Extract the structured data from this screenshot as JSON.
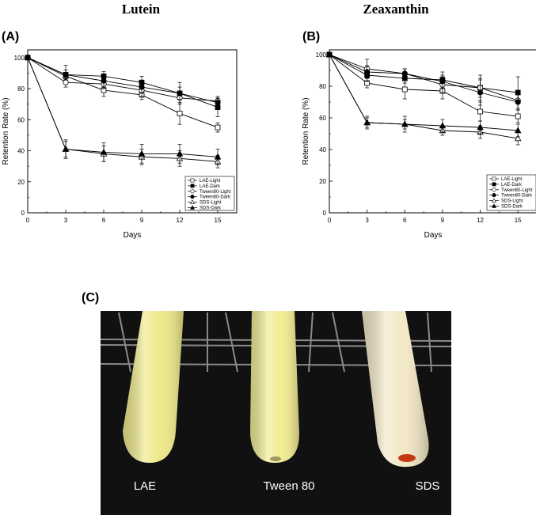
{
  "titles": {
    "left": "Lutein",
    "right": "Zeaxanthin"
  },
  "panel_labels": {
    "a": "(A)",
    "b": "(B)",
    "c": "(C)"
  },
  "photo": {
    "labels": [
      "LAE",
      "Tween 80",
      "SDS"
    ],
    "colors": {
      "background": "#111111",
      "tube_lae": "#eee98a",
      "tube_tween": "#f2ec93",
      "tube_sds": "#f3e8c6",
      "sediment": "#c43a12"
    }
  },
  "chart_data": [
    {
      "type": "line",
      "title": "Lutein",
      "panel": "(A)",
      "xlabel": "Days",
      "ylabel": "Retention Rate (%)",
      "xlim": [
        0,
        16.5
      ],
      "ylim": [
        0,
        105
      ],
      "xticks": [
        0,
        3,
        6,
        9,
        12,
        15
      ],
      "yticks": [
        0,
        20,
        40,
        60,
        80,
        100
      ],
      "legend_position": "bottom-right",
      "x": [
        0,
        3,
        6,
        9,
        12,
        15
      ],
      "series": [
        {
          "name": "LAE-Light",
          "marker": "square-open",
          "values": [
            100,
            88,
            79,
            76,
            64,
            55
          ],
          "errors": [
            0,
            2.5,
            4,
            3,
            7,
            3
          ]
        },
        {
          "name": "LAE-Dark",
          "marker": "square-filled",
          "values": [
            100,
            89,
            88,
            84,
            77,
            68
          ],
          "errors": [
            0,
            6,
            3,
            4,
            7,
            6
          ]
        },
        {
          "name": "Tween80-Light",
          "marker": "circle-open",
          "values": [
            100,
            84,
            83,
            79,
            74,
            72
          ],
          "errors": [
            0,
            3,
            3,
            4,
            4,
            3
          ]
        },
        {
          "name": "Tween80-Dark",
          "marker": "circle-filled",
          "values": [
            100,
            89,
            85,
            81,
            77,
            71
          ],
          "errors": [
            0,
            3,
            4,
            4,
            4,
            3
          ]
        },
        {
          "name": "SDS-Light",
          "marker": "triangle-open",
          "values": [
            100,
            41,
            38,
            36,
            35,
            33
          ],
          "errors": [
            0,
            5,
            5,
            5,
            5,
            4
          ]
        },
        {
          "name": "SDS-Dark",
          "marker": "triangle-filled",
          "values": [
            100,
            41,
            39,
            38,
            38,
            36
          ],
          "errors": [
            0,
            6,
            6,
            6,
            6,
            5
          ]
        }
      ]
    },
    {
      "type": "line",
      "title": "Zeaxanthin",
      "panel": "(B)",
      "xlabel": "Days",
      "ylabel": "Retention Rate (%)",
      "xlim": [
        0,
        16.5
      ],
      "ylim": [
        0,
        103
      ],
      "xticks": [
        0,
        3,
        6,
        9,
        12,
        15
      ],
      "yticks": [
        0,
        20,
        40,
        60,
        80,
        100
      ],
      "legend_position": "bottom-right",
      "x": [
        0,
        3,
        6,
        9,
        12,
        15
      ],
      "series": [
        {
          "name": "LAE-Light",
          "marker": "square-open",
          "values": [
            100,
            82,
            78,
            77,
            64,
            61
          ],
          "errors": [
            0,
            3,
            6,
            5,
            6,
            4
          ]
        },
        {
          "name": "LAE-Dark",
          "marker": "square-filled",
          "values": [
            100,
            87,
            85,
            84,
            79,
            76
          ],
          "errors": [
            0,
            4,
            3,
            5,
            6,
            10
          ]
        },
        {
          "name": "Tween80-Light",
          "marker": "circle-open",
          "values": [
            100,
            91,
            88,
            81,
            79,
            71
          ],
          "errors": [
            0,
            6,
            3,
            5,
            8,
            6
          ]
        },
        {
          "name": "Tween80-Dark",
          "marker": "circle-filled",
          "values": [
            100,
            89,
            88,
            83,
            76,
            70
          ],
          "errors": [
            0,
            4,
            3,
            4,
            8,
            5
          ]
        },
        {
          "name": "SDS-Light",
          "marker": "triangle-open",
          "values": [
            100,
            57,
            56,
            52,
            51,
            47
          ],
          "errors": [
            0,
            4,
            5,
            3,
            4,
            4
          ]
        },
        {
          "name": "SDS-Dark",
          "marker": "triangle-filled",
          "values": [
            100,
            57,
            56,
            55,
            54,
            52
          ],
          "errors": [
            0,
            3,
            3,
            4,
            4,
            4
          ]
        }
      ]
    }
  ]
}
